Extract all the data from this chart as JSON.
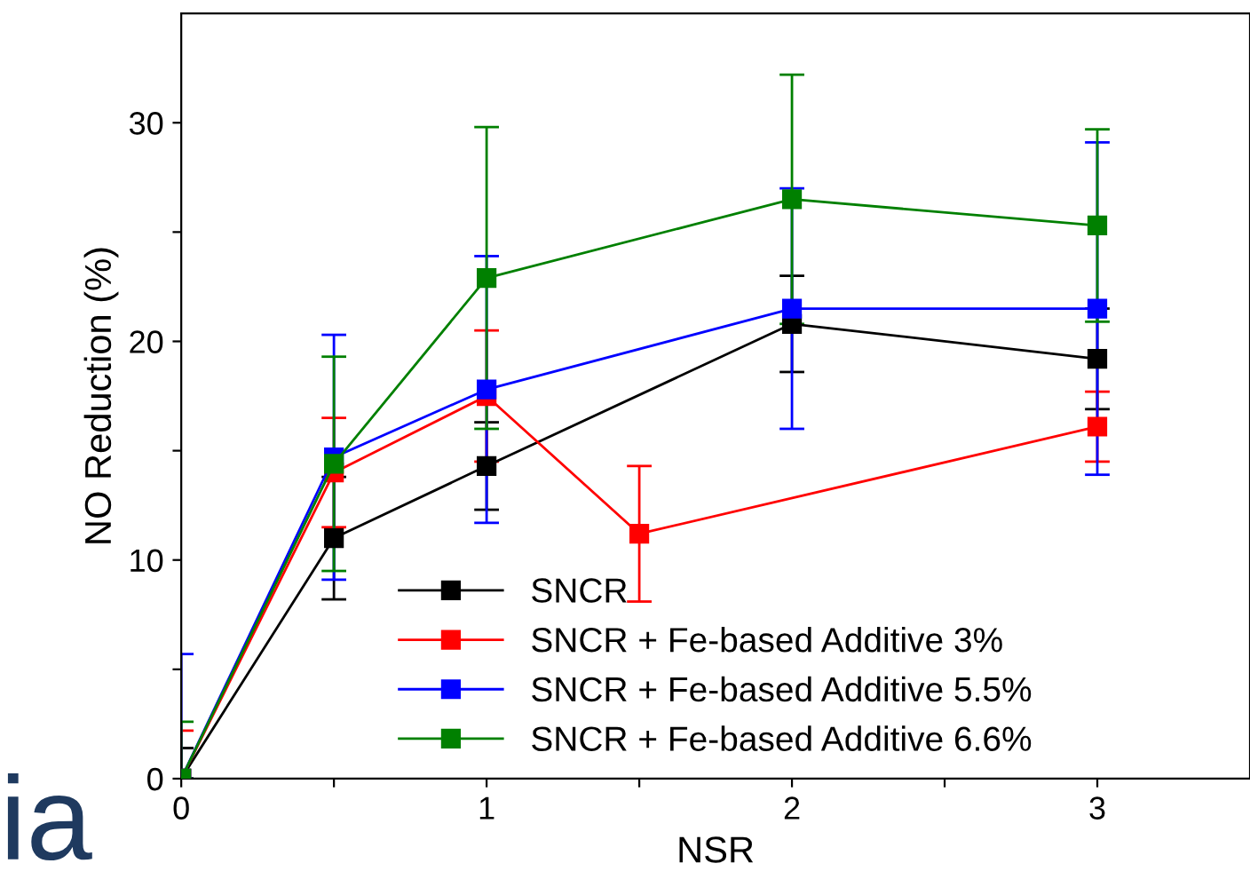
{
  "chart_data": {
    "type": "line",
    "xlabel": "NSR",
    "ylabel": "NO Reduction (%)",
    "x": [
      0,
      0.5,
      1,
      1.5,
      2,
      3
    ],
    "xlim": [
      0,
      3.5
    ],
    "xticks": [
      0,
      {
        "value": 0.5,
        "label": null
      },
      1,
      {
        "value": 1.5,
        "label": null
      },
      2,
      {
        "value": 2.5,
        "label": null
      },
      3
    ],
    "ylim": [
      0,
      35
    ],
    "yticks": [
      0,
      {
        "value": 5,
        "label": null
      },
      10,
      {
        "value": 15,
        "label": null
      },
      20,
      {
        "value": 25,
        "label": null
      },
      30
    ],
    "marker": "square",
    "grid": false,
    "legend": "bottom",
    "annotations": [
      "ia"
    ],
    "series": [
      {
        "name": "SNCR",
        "color": "#000000",
        "values": [
          0,
          11.0,
          14.3,
          null,
          20.8,
          19.2
        ],
        "errors": [
          [
            0,
            1.4
          ],
          2.8,
          2.0,
          null,
          2.2,
          2.3
        ]
      },
      {
        "name": "SNCR + Fe-based Additive 3%",
        "color": "#ff0000",
        "values": [
          0,
          14.0,
          17.5,
          11.2,
          null,
          16.1
        ],
        "errors": [
          [
            0,
            2.2
          ],
          2.5,
          3.0,
          3.1,
          null,
          1.6
        ]
      },
      {
        "name": "SNCR + Fe-based Additive 5.5%",
        "color": "#0000ff",
        "values": [
          0,
          14.7,
          17.8,
          null,
          21.5,
          21.5
        ],
        "errors": [
          [
            0,
            5.7
          ],
          5.6,
          6.1,
          null,
          5.5,
          7.6
        ]
      },
      {
        "name": "SNCR + Fe-based Additive 6.6%",
        "color": "#008000",
        "values": [
          0,
          14.4,
          22.9,
          null,
          26.5,
          25.3
        ],
        "errors": [
          [
            0,
            2.6
          ],
          4.9,
          6.9,
          null,
          5.7,
          4.4
        ]
      }
    ]
  }
}
